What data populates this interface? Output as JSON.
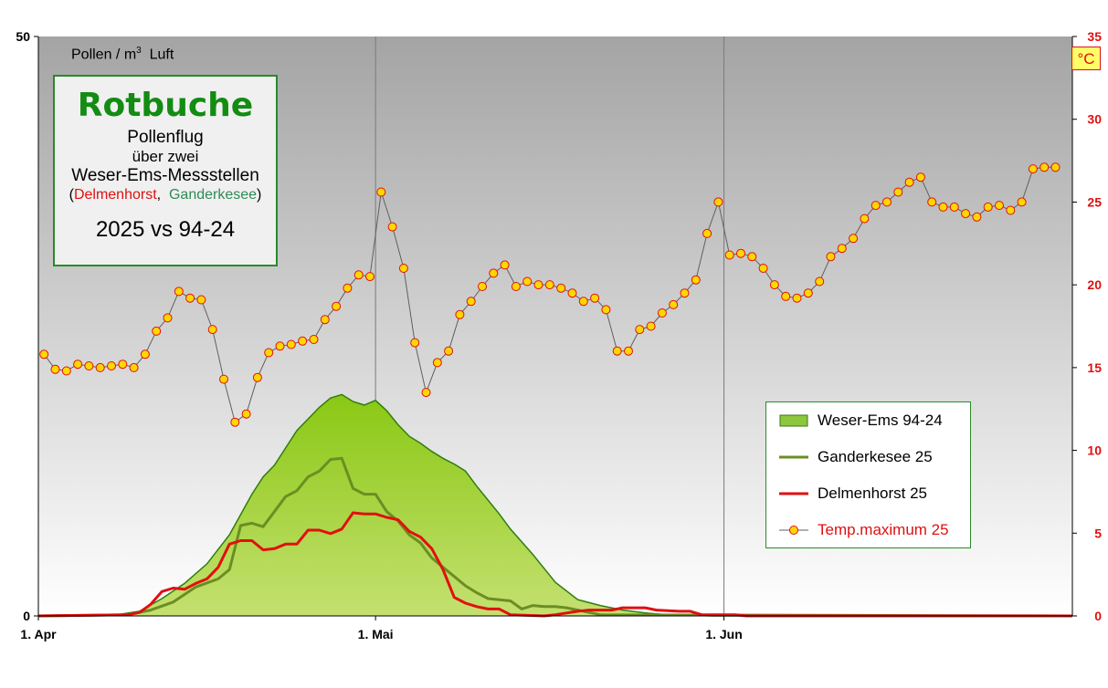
{
  "title_box": {
    "title": "Rotbuche",
    "line1": "Pollenflug",
    "line2": "über zwei",
    "line3": "Weser-Ems-Messstellen",
    "station_red": "Delmenhorst",
    "station_green": "Ganderkesee",
    "comparison": "2025 vs 94-24"
  },
  "left_axis_unit": "Pollen / m",
  "left_axis_unit_sup": "3",
  "left_axis_unit_tail": "Luft",
  "right_axis_unit": "°C",
  "legend_labels": {
    "area": "Weser-Ems 94-24",
    "gander": "Ganderkesee 25",
    "delmen": "Delmenhorst 25",
    "temp": "Temp.maximum 25"
  },
  "chart_data": {
    "type": "line",
    "days": 92,
    "x_ticks": [
      {
        "day": 0,
        "label": "1. Apr"
      },
      {
        "day": 30,
        "label": "1. Mai"
      },
      {
        "day": 61,
        "label": "1. Jun"
      }
    ],
    "y_left": {
      "min": 0,
      "max": 50,
      "ticks": [
        0,
        50
      ]
    },
    "y_right": {
      "min": 0,
      "max": 35,
      "ticks": [
        0,
        5,
        10,
        15,
        20,
        25,
        30,
        35
      ]
    },
    "series": [
      {
        "name": "Weser-Ems 94-24",
        "type": "area",
        "axis": "left",
        "color": "#8dc63f",
        "points": [
          [
            0,
            0
          ],
          [
            3,
            0.1
          ],
          [
            7,
            0.1
          ],
          [
            9,
            0.4
          ],
          [
            11,
            1.5
          ],
          [
            13,
            2.8
          ],
          [
            15,
            4.5
          ],
          [
            17,
            7
          ],
          [
            19,
            10.5
          ],
          [
            20,
            12
          ],
          [
            21,
            13
          ],
          [
            22,
            14.5
          ],
          [
            23,
            16
          ],
          [
            24,
            17
          ],
          [
            25,
            18
          ],
          [
            26,
            18.8
          ],
          [
            27,
            19.1
          ],
          [
            28,
            18.5
          ],
          [
            29,
            18.2
          ],
          [
            30,
            18.6
          ],
          [
            31,
            17.7
          ],
          [
            32,
            16.5
          ],
          [
            33,
            15.5
          ],
          [
            34,
            14.9
          ],
          [
            35,
            14.2
          ],
          [
            36,
            13.6
          ],
          [
            37,
            13.1
          ],
          [
            38,
            12.5
          ],
          [
            39,
            11.2
          ],
          [
            40,
            10
          ],
          [
            41,
            8.8
          ],
          [
            42,
            7.5
          ],
          [
            44,
            5.3
          ],
          [
            46,
            2.9
          ],
          [
            48,
            1.4
          ],
          [
            50,
            0.9
          ],
          [
            52,
            0.5
          ],
          [
            54,
            0.25
          ],
          [
            56,
            0.1
          ],
          [
            60,
            0
          ],
          [
            92,
            0
          ]
        ]
      },
      {
        "name": "Ganderkesee 25",
        "type": "line",
        "axis": "left",
        "color": "#6b8e23",
        "points": [
          [
            0,
            0
          ],
          [
            8,
            0.1
          ],
          [
            10,
            0.5
          ],
          [
            12,
            1.2
          ],
          [
            14,
            2.5
          ],
          [
            16,
            3.2
          ],
          [
            17,
            4
          ],
          [
            18,
            7.8
          ],
          [
            19,
            8
          ],
          [
            20,
            7.7
          ],
          [
            21,
            9
          ],
          [
            22,
            10.3
          ],
          [
            23,
            10.8
          ],
          [
            24,
            12
          ],
          [
            25,
            12.5
          ],
          [
            26,
            13.5
          ],
          [
            27,
            13.6
          ],
          [
            28,
            11
          ],
          [
            29,
            10.5
          ],
          [
            30,
            10.5
          ],
          [
            31,
            9
          ],
          [
            32,
            8.2
          ],
          [
            33,
            7
          ],
          [
            34,
            6.3
          ],
          [
            35,
            5
          ],
          [
            36,
            4.2
          ],
          [
            37,
            3.4
          ],
          [
            38,
            2.6
          ],
          [
            39,
            2
          ],
          [
            40,
            1.5
          ],
          [
            41,
            1.4
          ],
          [
            42,
            1.3
          ],
          [
            43,
            0.6
          ],
          [
            44,
            0.9
          ],
          [
            45,
            0.8
          ],
          [
            46,
            0.8
          ],
          [
            47,
            0.7
          ],
          [
            48,
            0.5
          ],
          [
            49,
            0.3
          ],
          [
            50,
            0.1
          ],
          [
            92,
            0
          ]
        ]
      },
      {
        "name": "Delmenhorst 25",
        "type": "line",
        "axis": "left",
        "color": "#e01010",
        "points": [
          [
            0,
            0
          ],
          [
            8,
            0.1
          ],
          [
            9,
            0.3
          ],
          [
            10,
            1
          ],
          [
            11,
            2.1
          ],
          [
            12,
            2.4
          ],
          [
            13,
            2.3
          ],
          [
            14,
            2.8
          ],
          [
            15,
            3.2
          ],
          [
            16,
            4.2
          ],
          [
            17,
            6.2
          ],
          [
            18,
            6.5
          ],
          [
            19,
            6.5
          ],
          [
            20,
            5.7
          ],
          [
            21,
            5.8
          ],
          [
            22,
            6.2
          ],
          [
            23,
            6.2
          ],
          [
            24,
            7.4
          ],
          [
            25,
            7.4
          ],
          [
            26,
            7.1
          ],
          [
            27,
            7.5
          ],
          [
            28,
            8.9
          ],
          [
            29,
            8.8
          ],
          [
            30,
            8.8
          ],
          [
            31,
            8.5
          ],
          [
            32,
            8.3
          ],
          [
            33,
            7.3
          ],
          [
            34,
            6.8
          ],
          [
            35,
            5.8
          ],
          [
            36,
            4
          ],
          [
            37,
            1.6
          ],
          [
            38,
            1.1
          ],
          [
            39,
            0.8
          ],
          [
            40,
            0.6
          ],
          [
            41,
            0.6
          ],
          [
            42,
            0.1
          ],
          [
            45,
            0
          ],
          [
            46,
            0.1
          ],
          [
            48,
            0.4
          ],
          [
            49,
            0.5
          ],
          [
            51,
            0.5
          ],
          [
            52,
            0.7
          ],
          [
            54,
            0.7
          ],
          [
            55,
            0.5
          ],
          [
            57,
            0.4
          ],
          [
            58,
            0.4
          ],
          [
            59,
            0.1
          ],
          [
            61,
            0.1
          ],
          [
            62,
            0.1
          ],
          [
            63,
            0
          ],
          [
            92,
            0
          ]
        ]
      },
      {
        "name": "Temp.maximum 25",
        "type": "line-markers",
        "axis": "right",
        "color": "#606060",
        "marker_color": "#ffd700",
        "values": [
          15.8,
          14.9,
          14.8,
          15.2,
          15.1,
          15,
          15.1,
          15.2,
          15,
          15.8,
          17.2,
          18,
          19.6,
          19.2,
          19.1,
          17.3,
          14.3,
          11.7,
          12.2,
          14.4,
          15.9,
          16.3,
          16.4,
          16.6,
          16.7,
          17.9,
          18.7,
          19.8,
          20.6,
          20.5,
          25.6,
          23.5,
          21,
          16.5,
          13.5,
          15.3,
          16,
          18.2,
          19,
          19.9,
          20.7,
          21.2,
          19.9,
          20.2,
          20,
          20,
          19.8,
          19.5,
          19,
          19.2,
          18.5,
          16,
          16,
          17.3,
          17.5,
          18.3,
          18.8,
          19.5,
          20.3,
          23.1,
          25,
          21.8,
          21.9,
          21.7,
          21,
          20,
          19.3,
          19.2,
          19.5,
          20.2,
          21.7,
          22.2,
          22.8,
          24,
          24.8,
          25,
          25.6,
          26.2,
          26.5,
          25,
          24.7,
          24.7,
          24.3,
          24.1,
          24.7,
          24.8,
          24.5,
          25,
          27,
          27.1,
          27.1
        ]
      }
    ]
  }
}
